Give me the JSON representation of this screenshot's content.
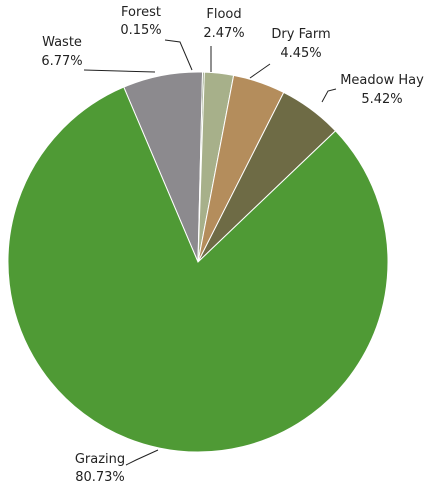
{
  "chart_data": {
    "type": "pie",
    "categories": [
      "Waste",
      "Forest",
      "Flood",
      "Dry Farm",
      "Meadow Hay",
      "Grazing"
    ],
    "values": [
      6.77,
      0.15,
      2.47,
      4.45,
      5.42,
      80.73
    ],
    "value_labels": [
      "6.77%",
      "0.15%",
      "2.47%",
      "4.45%",
      "5.42%",
      "80.73%"
    ],
    "colors": [
      "#8c8a8e",
      "#7f8f6a",
      "#a7b08a",
      "#b48d5c",
      "#6e6b45",
      "#4f9a35"
    ]
  }
}
